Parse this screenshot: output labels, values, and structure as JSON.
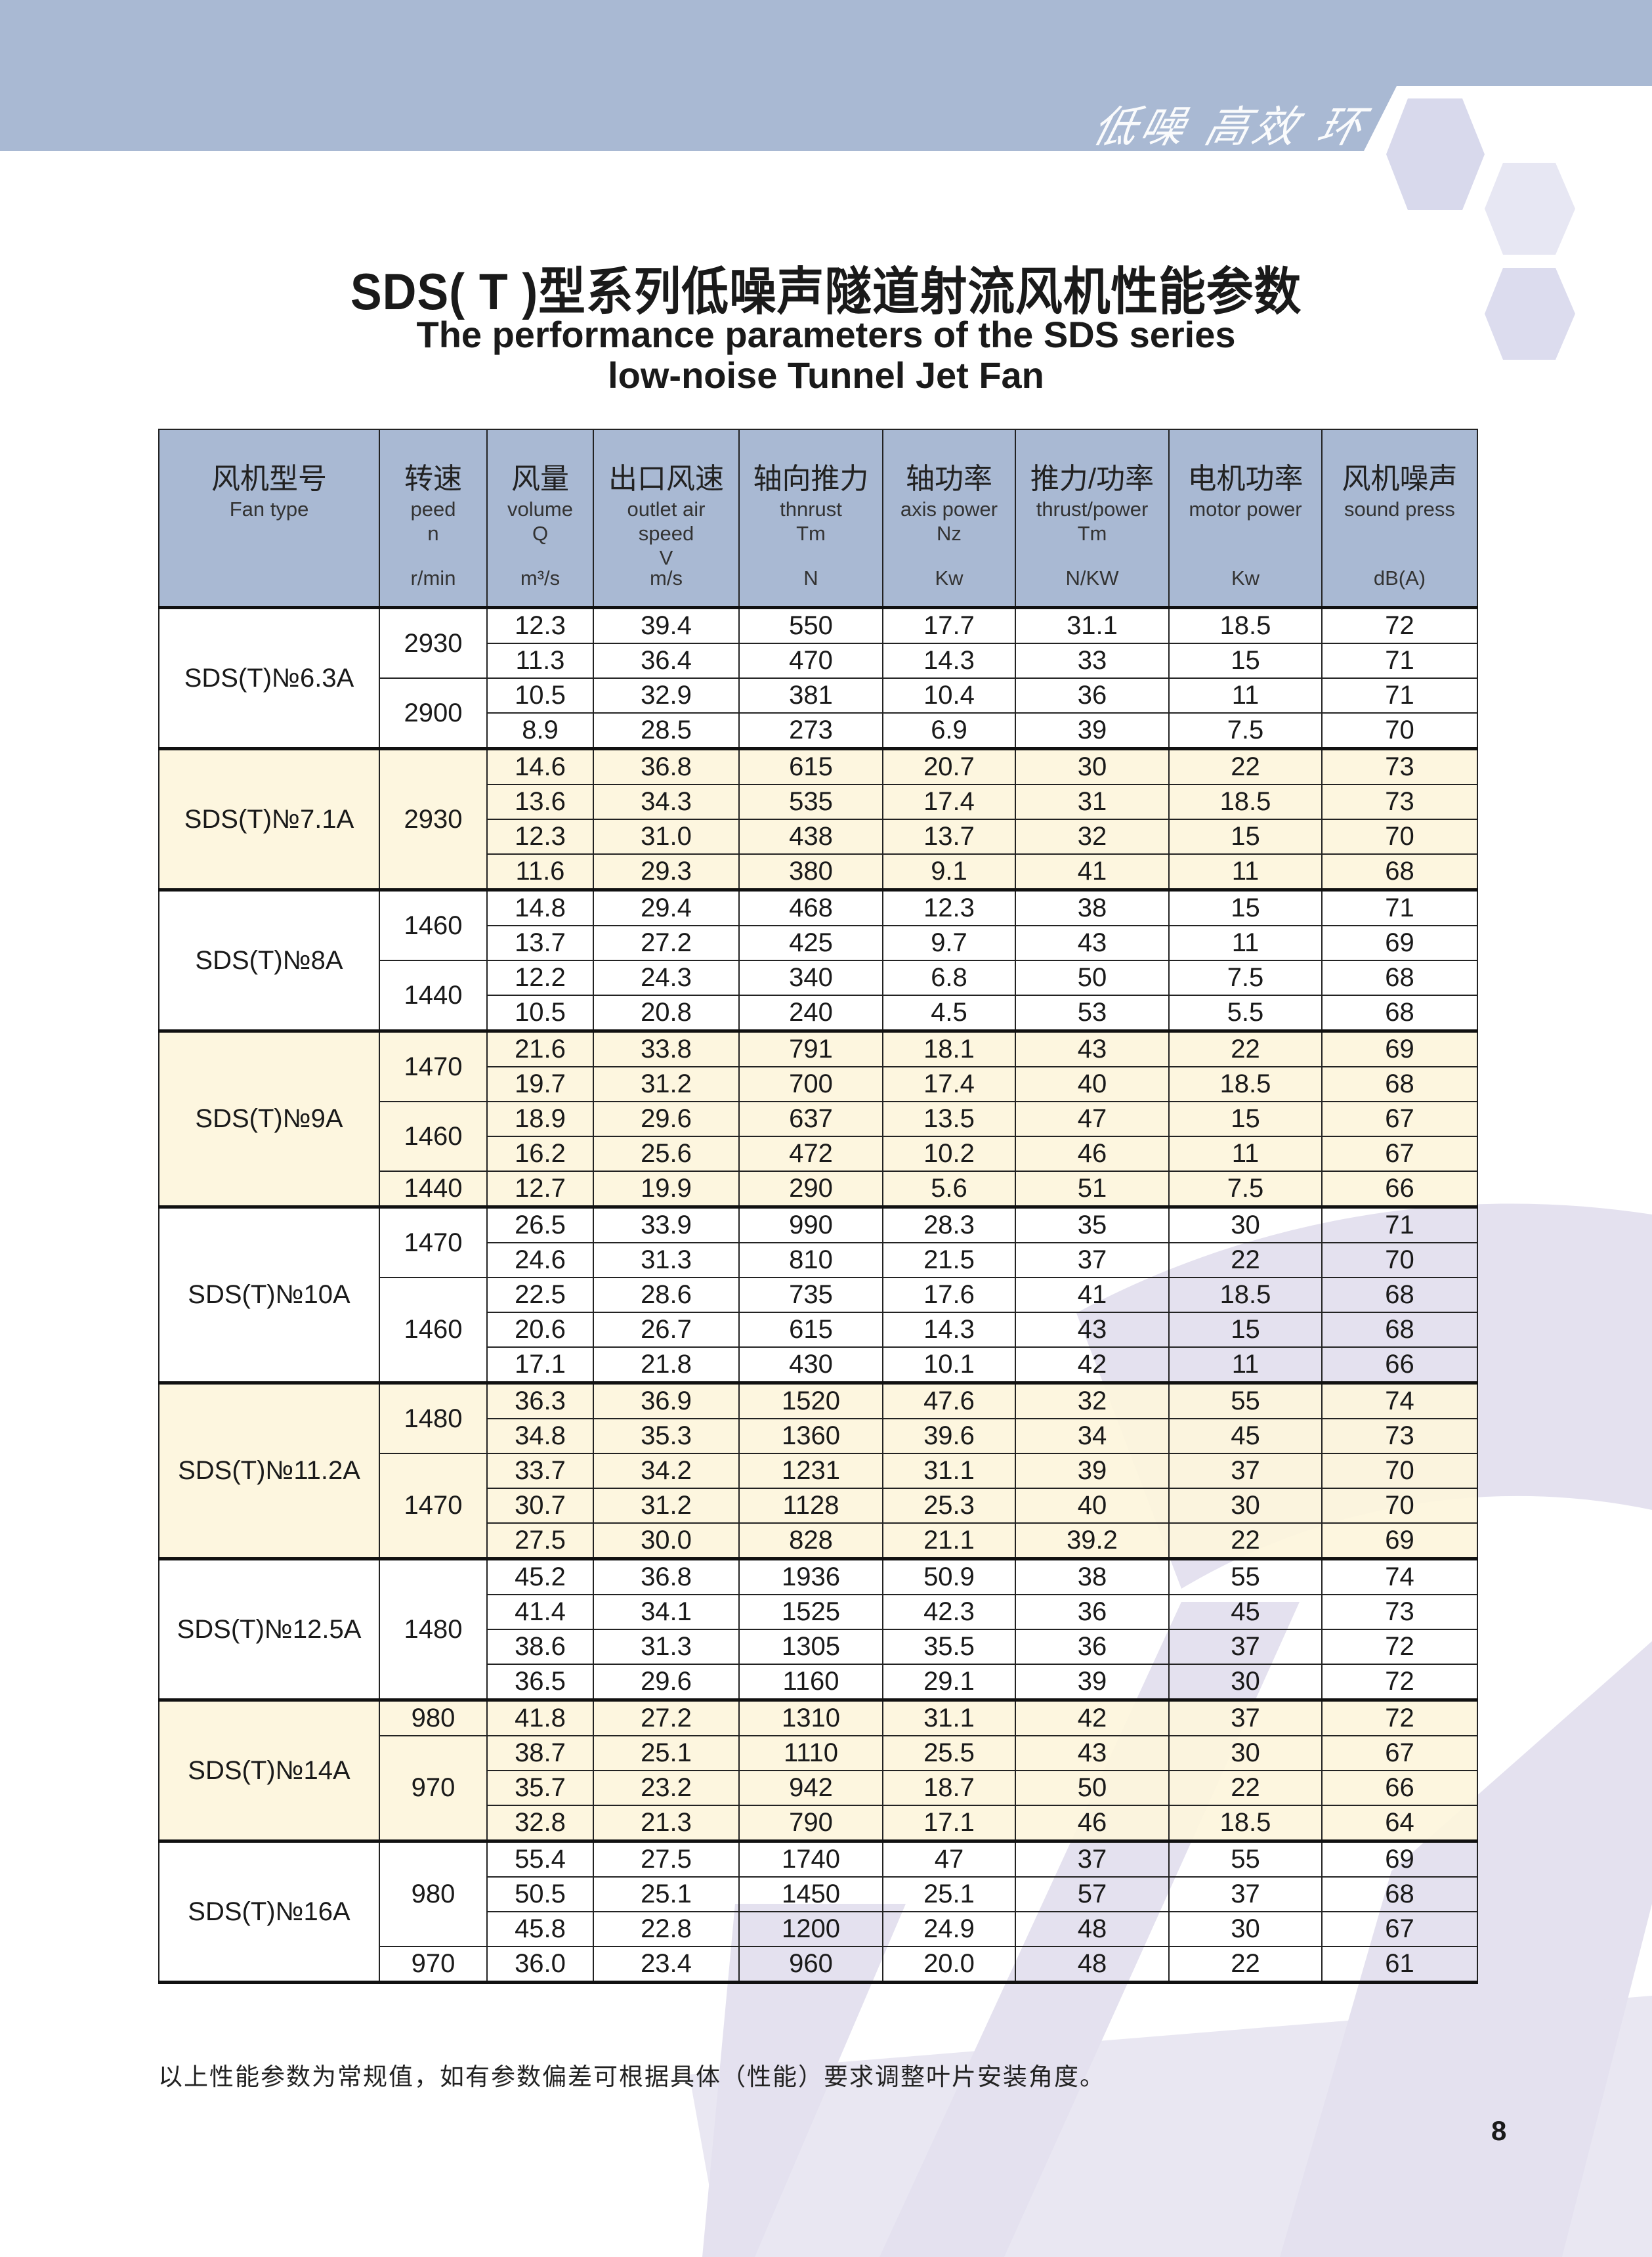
{
  "banner": {
    "slogan": "低噪 高效 环保"
  },
  "title": "SDS( T )型系列低噪声隧道射流风机性能参数",
  "subtitle_line1": "The performance parameters of the SDS series",
  "subtitle_line2": "low-noise Tunnel Jet Fan",
  "colors": {
    "header_bg": "#a9b9d3",
    "banner": "#a9b9d3",
    "shaded_row": "#fdf5dc",
    "decor": "#e4e1ef"
  },
  "table": {
    "headers": [
      {
        "cn": "风机型号",
        "en": [
          "Fan type"
        ],
        "unit": ""
      },
      {
        "cn": "转速",
        "en": [
          "peed",
          "n"
        ],
        "unit": "r/min"
      },
      {
        "cn": "风量",
        "en": [
          "volume",
          "Q"
        ],
        "unit": "m³/s"
      },
      {
        "cn": "出口风速",
        "en": [
          "outlet air",
          "speed",
          "V"
        ],
        "unit": "m/s"
      },
      {
        "cn": "轴向推力",
        "en": [
          "thnrust",
          "Tm"
        ],
        "unit": "N"
      },
      {
        "cn": "轴功率",
        "en": [
          "axis power",
          "Nz"
        ],
        "unit": "Kw"
      },
      {
        "cn": "推力/功率",
        "en": [
          "thrust/power",
          "Tm"
        ],
        "unit": "N/KW"
      },
      {
        "cn": "电机功率",
        "en": [
          "motor power"
        ],
        "unit": "Kw"
      },
      {
        "cn": "风机噪声",
        "en": [
          "sound press"
        ],
        "unit": "dB(A)"
      }
    ],
    "groups": [
      {
        "model": "SDS(T)№6.3A",
        "shaded": false,
        "speeds": [
          {
            "rpm": "2930",
            "rows": [
              [
                "12.3",
                "39.4",
                "550",
                "17.7",
                "31.1",
                "18.5",
                "72"
              ],
              [
                "11.3",
                "36.4",
                "470",
                "14.3",
                "33",
                "15",
                "71"
              ]
            ]
          },
          {
            "rpm": "2900",
            "rows": [
              [
                "10.5",
                "32.9",
                "381",
                "10.4",
                "36",
                "11",
                "71"
              ],
              [
                "8.9",
                "28.5",
                "273",
                "6.9",
                "39",
                "7.5",
                "70"
              ]
            ]
          }
        ]
      },
      {
        "model": "SDS(T)№7.1A",
        "shaded": true,
        "speeds": [
          {
            "rpm": "2930",
            "rows": [
              [
                "14.6",
                "36.8",
                "615",
                "20.7",
                "30",
                "22",
                "73"
              ],
              [
                "13.6",
                "34.3",
                "535",
                "17.4",
                "31",
                "18.5",
                "73"
              ],
              [
                "12.3",
                "31.0",
                "438",
                "13.7",
                "32",
                "15",
                "70"
              ],
              [
                "11.6",
                "29.3",
                "380",
                "9.1",
                "41",
                "11",
                "68"
              ]
            ]
          }
        ]
      },
      {
        "model": "SDS(T)№8A",
        "shaded": false,
        "speeds": [
          {
            "rpm": "1460",
            "rows": [
              [
                "14.8",
                "29.4",
                "468",
                "12.3",
                "38",
                "15",
                "71"
              ],
              [
                "13.7",
                "27.2",
                "425",
                "9.7",
                "43",
                "11",
                "69"
              ]
            ]
          },
          {
            "rpm": "1440",
            "rows": [
              [
                "12.2",
                "24.3",
                "340",
                "6.8",
                "50",
                "7.5",
                "68"
              ],
              [
                "10.5",
                "20.8",
                "240",
                "4.5",
                "53",
                "5.5",
                "68"
              ]
            ]
          }
        ]
      },
      {
        "model": "SDS(T)№9A",
        "shaded": true,
        "speeds": [
          {
            "rpm": "1470",
            "rows": [
              [
                "21.6",
                "33.8",
                "791",
                "18.1",
                "43",
                "22",
                "69"
              ],
              [
                "19.7",
                "31.2",
                "700",
                "17.4",
                "40",
                "18.5",
                "68"
              ]
            ]
          },
          {
            "rpm": "1460",
            "rows": [
              [
                "18.9",
                "29.6",
                "637",
                "13.5",
                "47",
                "15",
                "67"
              ],
              [
                "16.2",
                "25.6",
                "472",
                "10.2",
                "46",
                "11",
                "67"
              ]
            ]
          },
          {
            "rpm": "1440",
            "rows": [
              [
                "12.7",
                "19.9",
                "290",
                "5.6",
                "51",
                "7.5",
                "66"
              ]
            ]
          }
        ]
      },
      {
        "model": "SDS(T)№10A",
        "shaded": false,
        "speeds": [
          {
            "rpm": "1470",
            "rows": [
              [
                "26.5",
                "33.9",
                "990",
                "28.3",
                "35",
                "30",
                "71"
              ],
              [
                "24.6",
                "31.3",
                "810",
                "21.5",
                "37",
                "22",
                "70"
              ]
            ]
          },
          {
            "rpm": "1460",
            "rows": [
              [
                "22.5",
                "28.6",
                "735",
                "17.6",
                "41",
                "18.5",
                "68"
              ],
              [
                "20.6",
                "26.7",
                "615",
                "14.3",
                "43",
                "15",
                "68"
              ],
              [
                "17.1",
                "21.8",
                "430",
                "10.1",
                "42",
                "11",
                "66"
              ]
            ]
          }
        ]
      },
      {
        "model": "SDS(T)№11.2A",
        "shaded": true,
        "speeds": [
          {
            "rpm": "1480",
            "rows": [
              [
                "36.3",
                "36.9",
                "1520",
                "47.6",
                "32",
                "55",
                "74"
              ],
              [
                "34.8",
                "35.3",
                "1360",
                "39.6",
                "34",
                "45",
                "73"
              ]
            ]
          },
          {
            "rpm": "1470",
            "rows": [
              [
                "33.7",
                "34.2",
                "1231",
                "31.1",
                "39",
                "37",
                "70"
              ],
              [
                "30.7",
                "31.2",
                "1128",
                "25.3",
                "40",
                "30",
                "70"
              ],
              [
                "27.5",
                "30.0",
                "828",
                "21.1",
                "39.2",
                "22",
                "69"
              ]
            ]
          }
        ]
      },
      {
        "model": "SDS(T)№12.5A",
        "shaded": false,
        "speeds": [
          {
            "rpm": "1480",
            "rows": [
              [
                "45.2",
                "36.8",
                "1936",
                "50.9",
                "38",
                "55",
                "74"
              ],
              [
                "41.4",
                "34.1",
                "1525",
                "42.3",
                "36",
                "45",
                "73"
              ],
              [
                "38.6",
                "31.3",
                "1305",
                "35.5",
                "36",
                "37",
                "72"
              ],
              [
                "36.5",
                "29.6",
                "1160",
                "29.1",
                "39",
                "30",
                "72"
              ]
            ]
          }
        ]
      },
      {
        "model": "SDS(T)№14A",
        "shaded": true,
        "speeds": [
          {
            "rpm": "980",
            "rows": [
              [
                "41.8",
                "27.2",
                "1310",
                "31.1",
                "42",
                "37",
                "72"
              ]
            ]
          },
          {
            "rpm": "970",
            "rows": [
              [
                "38.7",
                "25.1",
                "1110",
                "25.5",
                "43",
                "30",
                "67"
              ],
              [
                "35.7",
                "23.2",
                "942",
                "18.7",
                "50",
                "22",
                "66"
              ],
              [
                "32.8",
                "21.3",
                "790",
                "17.1",
                "46",
                "18.5",
                "64"
              ]
            ]
          }
        ]
      },
      {
        "model": "SDS(T)№16A",
        "shaded": false,
        "speeds": [
          {
            "rpm": "980",
            "rows": [
              [
                "55.4",
                "27.5",
                "1740",
                "47",
                "37",
                "55",
                "69"
              ],
              [
                "50.5",
                "25.1",
                "1450",
                "25.1",
                "57",
                "37",
                "68"
              ],
              [
                "45.8",
                "22.8",
                "1200",
                "24.9",
                "48",
                "30",
                "67"
              ]
            ]
          },
          {
            "rpm": "970",
            "rows": [
              [
                "36.0",
                "23.4",
                "960",
                "20.0",
                "48",
                "22",
                "61"
              ]
            ]
          }
        ]
      }
    ]
  },
  "footnote": "以上性能参数为常规值，如有参数偏差可根据具体（性能）要求调整叶片安装角度。",
  "page_number": "8"
}
